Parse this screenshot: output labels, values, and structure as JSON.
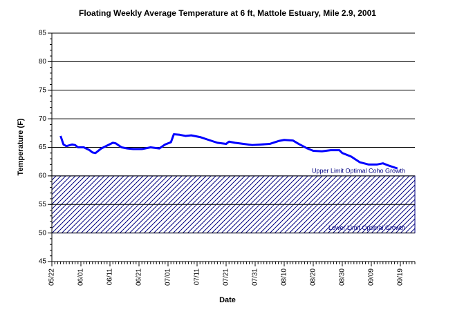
{
  "chart_data": {
    "type": "line",
    "title": "Floating Weekly Average Temperature at 6 ft, Mattole Estuary, Mile 2.9, 2001",
    "x_label": "Date",
    "y_label": "Temperature (F)",
    "x": [
      3,
      4,
      5,
      7,
      8,
      9,
      11,
      13,
      14,
      15,
      17,
      19,
      21,
      22,
      24,
      26,
      28,
      31,
      34,
      37,
      39,
      41,
      42,
      44,
      46,
      48,
      51,
      54,
      57,
      60,
      61,
      63,
      66,
      69,
      72,
      75,
      78,
      80,
      83,
      85,
      88,
      90,
      93,
      96,
      99,
      100,
      103,
      106,
      109,
      112,
      114,
      116,
      119
    ],
    "series": [
      {
        "name": "Temperature",
        "color": "#0000ff",
        "values": [
          67.0,
          65.5,
          65.2,
          65.5,
          65.4,
          65.0,
          65.0,
          64.5,
          64.1,
          64.0,
          64.8,
          65.3,
          65.8,
          65.7,
          65.0,
          64.8,
          64.7,
          64.7,
          65.0,
          64.8,
          65.5,
          65.9,
          67.3,
          67.2,
          67.0,
          67.1,
          66.8,
          66.3,
          65.8,
          65.6,
          66.0,
          65.8,
          65.6,
          65.4,
          65.5,
          65.6,
          66.1,
          66.3,
          66.2,
          65.6,
          64.8,
          64.4,
          64.3,
          64.5,
          64.5,
          64.0,
          63.4,
          62.4,
          62.0,
          62.0,
          62.2,
          61.8,
          61.3
        ]
      }
    ],
    "xlim": [
      0,
      125
    ],
    "xticks": [
      {
        "value": 0,
        "label": "05/22"
      },
      {
        "value": 10,
        "label": "06/01"
      },
      {
        "value": 20,
        "label": "06/11"
      },
      {
        "value": 30,
        "label": "06/21"
      },
      {
        "value": 40,
        "label": "07/01"
      },
      {
        "value": 50,
        "label": "07/11"
      },
      {
        "value": 60,
        "label": "07/21"
      },
      {
        "value": 70,
        "label": "07/31"
      },
      {
        "value": 80,
        "label": "08/10"
      },
      {
        "value": 90,
        "label": "08/20"
      },
      {
        "value": 100,
        "label": "08/30"
      },
      {
        "value": 110,
        "label": "09/09"
      },
      {
        "value": 120,
        "label": "09/19"
      }
    ],
    "ylim": [
      45,
      85
    ],
    "yticks": [
      45,
      50,
      55,
      60,
      65,
      70,
      75,
      80,
      85
    ],
    "grid": true,
    "band": {
      "lower": 50,
      "upper": 60,
      "color": "#000080"
    },
    "annotations": [
      {
        "text": "Upper Limit Optimal Coho Growth",
        "y": 60
      },
      {
        "text": "Lower Limit Optimal Growth",
        "y": 50
      }
    ]
  }
}
